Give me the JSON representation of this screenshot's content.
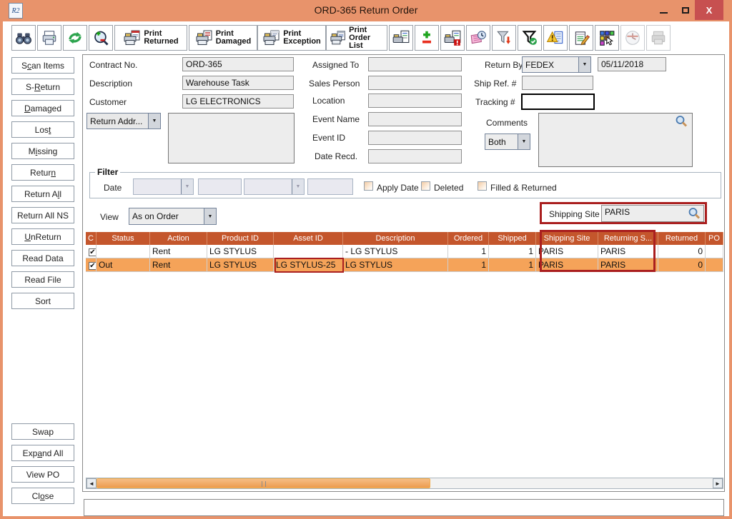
{
  "window": {
    "title": "ORD-365 Return Order",
    "app_icon_text": "R2"
  },
  "toolbar": {
    "icons": [
      "binoculars-icon",
      "printer-icon",
      "refresh-icon",
      "zoom-icon",
      "scan-list-icon",
      "add-remove-icon",
      "scan-list-alert-icon",
      "notes-history-icon",
      "filter-apply-icon",
      "filter-check-icon",
      "exception-report-icon",
      "edit-notes-icon",
      "layout-grid-icon",
      "clock-icon",
      "printer-disabled-icon"
    ],
    "print_buttons": [
      {
        "line1": "Print",
        "line2": "Returned"
      },
      {
        "line1": "Print",
        "line2": "Damaged"
      },
      {
        "line1": "Print",
        "line2": "Exception"
      },
      {
        "line1": "Print",
        "line2": "Order List"
      }
    ]
  },
  "sidebar": {
    "buttons": [
      {
        "label": "Scan Items",
        "html": "S<u>c</u>an Items"
      },
      {
        "label": "S-Return",
        "html": "S-<u>R</u>eturn"
      },
      {
        "label": "Damaged",
        "html": "<u>D</u>amaged"
      },
      {
        "label": "Lost",
        "html": "Los<u>t</u>"
      },
      {
        "label": "Missing",
        "html": "M<u>i</u>ssing"
      },
      {
        "label": "Return",
        "html": "Retur<u>n</u>"
      },
      {
        "label": "Return All",
        "html": "Return A<u>l</u>l"
      },
      {
        "label": "Return All NS",
        "html": "Return All NS"
      },
      {
        "label": "UnReturn",
        "html": "<u>U</u>nReturn"
      },
      {
        "label": "Read Data",
        "html": "Read Data"
      },
      {
        "label": "Read File",
        "html": "Read File"
      },
      {
        "label": "Sort",
        "html": "Sort"
      }
    ],
    "bottom_buttons": [
      {
        "label": "Swap",
        "html": "Swap"
      },
      {
        "label": "Expand All",
        "html": "Exp<u>a</u>nd All"
      },
      {
        "label": "View PO",
        "html": "View PO"
      },
      {
        "label": "Close",
        "html": "Cl<u>o</u>se"
      }
    ]
  },
  "form": {
    "contract_label": "Contract No.",
    "contract_value": "ORD-365",
    "description_label": "Description",
    "description_value": "Warehouse Task",
    "customer_label": "Customer",
    "customer_value": "LG ELECTRONICS",
    "return_addr_label": "Return Addr...",
    "assigned_label": "Assigned To",
    "sales_label": "Sales Person",
    "location_label": "Location",
    "event_name_label": "Event Name",
    "event_id_label": "Event ID",
    "date_recd_label": "Date Recd.",
    "return_by_label": "Return By",
    "return_by_value": "FEDEX",
    "return_date_value": "05/11/2018",
    "ship_ref_label": "Ship Ref. #",
    "ship_ref_value": "",
    "tracking_label": "Tracking #",
    "tracking_value": "",
    "comments_label": "Comments",
    "comments_filter_value": "Both",
    "comments_value": ""
  },
  "filter": {
    "title": "Filter",
    "date_label": "Date",
    "checkboxes": [
      "Apply Date",
      "Deleted",
      "Filled & Returned"
    ]
  },
  "view": {
    "label": "View",
    "value": "As on Order"
  },
  "shipping_site": {
    "label": "Shipping Site",
    "value": "PARIS"
  },
  "table": {
    "columns": [
      "C",
      "Status",
      "Action",
      "Product ID",
      "Asset ID",
      "Description",
      "Ordered",
      "Shipped",
      "Shipping Site",
      "Returning S...",
      "Returned",
      "PO"
    ],
    "rows": [
      {
        "c": true,
        "status": "",
        "action": "Rent",
        "product_id": "LG STYLUS",
        "asset_id": "",
        "description": "- LG STYLUS",
        "ordered": "1",
        "shipped": "1",
        "shipping_site": "PARIS",
        "returning_site": "PARIS",
        "returned": "0",
        "po": "",
        "selected": false
      },
      {
        "c": true,
        "status": "Out",
        "action": "Rent",
        "product_id": "LG STYLUS",
        "asset_id": "LG STYLUS-25",
        "description": "LG STYLUS",
        "ordered": "1",
        "shipped": "1",
        "shipping_site": "PARIS",
        "returning_site": "PARIS",
        "returned": "0",
        "po": "",
        "selected": true
      }
    ]
  },
  "colors": {
    "titlebar": "#E8936B",
    "close_button": "#C75050",
    "table_header": "#C4562C",
    "selected_row": "#F5A359",
    "annotation_red": "#AA1F1F",
    "scrollbar_thumb": "#EFA661",
    "field_bg": "#EDEDED"
  }
}
